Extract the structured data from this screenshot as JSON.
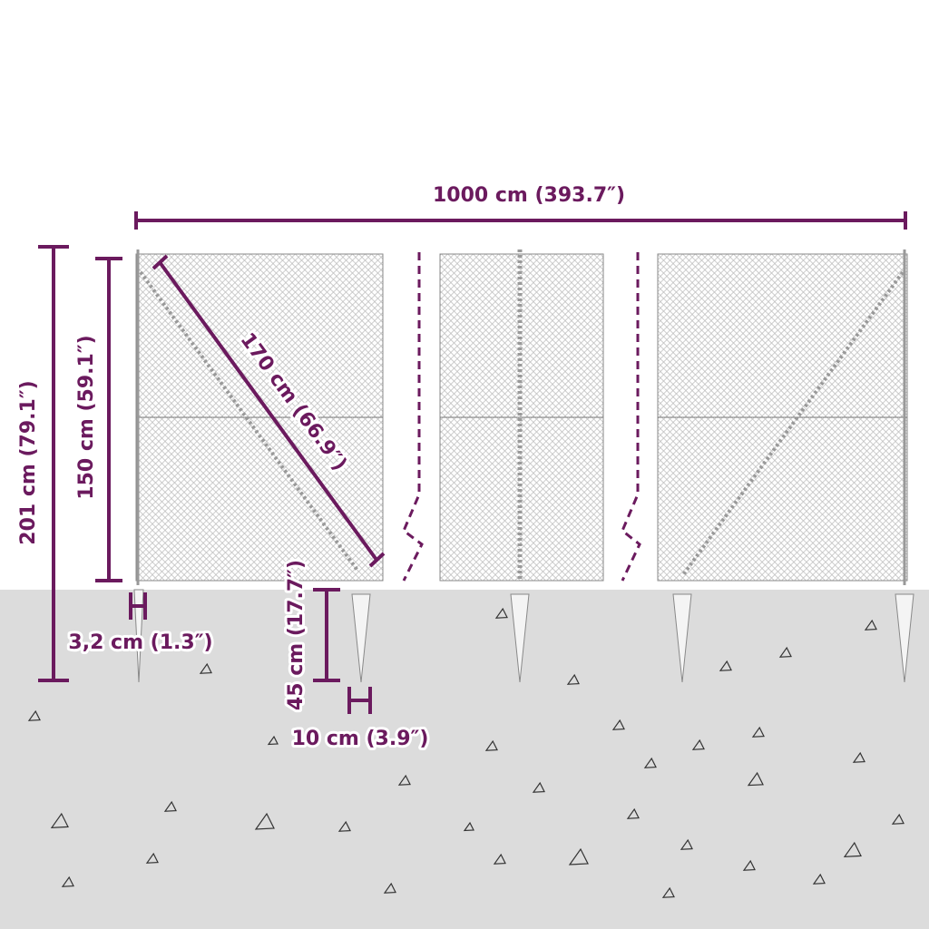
{
  "dimensions": {
    "total_length": "1000 cm (393.7″)",
    "total_height": "201 cm (79.1″)",
    "fence_height": "150 cm (59.1″)",
    "brace_length": "170 cm (66.9″)",
    "stake_depth": "45 cm (17.7″)",
    "post_diameter": "3,2 cm (1.3″)",
    "stake_width": "10 cm (3.9″)"
  },
  "colors": {
    "dimension": "#6b1a5e",
    "ground": "#dcdcdc",
    "mesh": "#9a9a9a"
  }
}
